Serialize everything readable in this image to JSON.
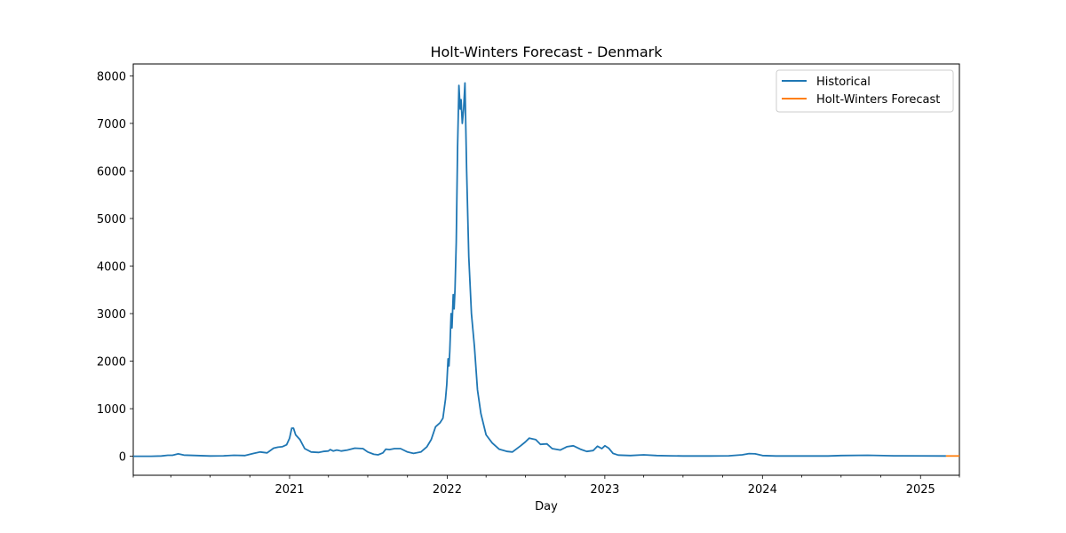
{
  "chart_data": {
    "type": "line",
    "title": "Holt-Winters Forecast - Denmark",
    "xlabel": "Day",
    "ylabel": "",
    "xlim": [
      "2020-01-05",
      "2025-04-01"
    ],
    "ylim": [
      -400,
      8250
    ],
    "grid": false,
    "legend_position": "top-right",
    "x_ticks": [
      {
        "date": "2021-01-01",
        "label": "2021"
      },
      {
        "date": "2022-01-01",
        "label": "2022"
      },
      {
        "date": "2023-01-01",
        "label": "2023"
      },
      {
        "date": "2024-01-01",
        "label": "2024"
      },
      {
        "date": "2025-01-01",
        "label": "2025"
      }
    ],
    "x_minor_ticks": [
      "2020-01-05",
      "2020-04-01",
      "2020-07-01",
      "2020-10-01",
      "2021-04-01",
      "2021-07-01",
      "2021-10-01",
      "2022-04-01",
      "2022-07-01",
      "2022-10-01",
      "2023-04-01",
      "2023-07-01",
      "2023-10-01",
      "2024-04-01",
      "2024-07-01",
      "2024-10-01",
      "2025-04-01"
    ],
    "y_ticks": [
      0,
      1000,
      2000,
      3000,
      4000,
      5000,
      6000,
      7000,
      8000
    ],
    "series": [
      {
        "name": "Historical",
        "color": "#1f77b4",
        "points": [
          [
            "2020-01-05",
            0
          ],
          [
            "2020-02-15",
            0
          ],
          [
            "2020-03-10",
            5
          ],
          [
            "2020-03-25",
            20
          ],
          [
            "2020-04-05",
            20
          ],
          [
            "2020-04-18",
            50
          ],
          [
            "2020-05-01",
            25
          ],
          [
            "2020-06-01",
            15
          ],
          [
            "2020-07-01",
            5
          ],
          [
            "2020-08-01",
            10
          ],
          [
            "2020-08-25",
            20
          ],
          [
            "2020-09-20",
            15
          ],
          [
            "2020-10-10",
            60
          ],
          [
            "2020-10-25",
            90
          ],
          [
            "2020-11-10",
            70
          ],
          [
            "2020-11-25",
            170
          ],
          [
            "2020-12-05",
            190
          ],
          [
            "2020-12-15",
            200
          ],
          [
            "2020-12-25",
            240
          ],
          [
            "2021-01-01",
            380
          ],
          [
            "2021-01-06",
            590
          ],
          [
            "2021-01-10",
            590
          ],
          [
            "2021-01-15",
            450
          ],
          [
            "2021-01-25",
            350
          ],
          [
            "2021-02-05",
            160
          ],
          [
            "2021-02-20",
            90
          ],
          [
            "2021-03-10",
            80
          ],
          [
            "2021-03-20",
            100
          ],
          [
            "2021-04-01",
            110
          ],
          [
            "2021-04-05",
            140
          ],
          [
            "2021-04-12",
            110
          ],
          [
            "2021-04-20",
            130
          ],
          [
            "2021-05-01",
            110
          ],
          [
            "2021-05-15",
            130
          ],
          [
            "2021-06-01",
            170
          ],
          [
            "2021-06-20",
            160
          ],
          [
            "2021-07-01",
            90
          ],
          [
            "2021-07-15",
            40
          ],
          [
            "2021-07-25",
            30
          ],
          [
            "2021-08-05",
            70
          ],
          [
            "2021-08-12",
            150
          ],
          [
            "2021-08-20",
            140
          ],
          [
            "2021-09-01",
            160
          ],
          [
            "2021-09-15",
            160
          ],
          [
            "2021-10-01",
            90
          ],
          [
            "2021-10-15",
            60
          ],
          [
            "2021-11-01",
            90
          ],
          [
            "2021-11-15",
            200
          ],
          [
            "2021-11-25",
            350
          ],
          [
            "2021-12-05",
            620
          ],
          [
            "2021-12-15",
            700
          ],
          [
            "2021-12-22",
            800
          ],
          [
            "2021-12-28",
            1200
          ],
          [
            "2021-12-31",
            1500
          ],
          [
            "2022-01-03",
            2050
          ],
          [
            "2022-01-05",
            1900
          ],
          [
            "2022-01-07",
            2200
          ],
          [
            "2022-01-10",
            3000
          ],
          [
            "2022-01-12",
            2700
          ],
          [
            "2022-01-15",
            3400
          ],
          [
            "2022-01-17",
            3100
          ],
          [
            "2022-01-19",
            3500
          ],
          [
            "2022-01-22",
            4500
          ],
          [
            "2022-01-25",
            6500
          ],
          [
            "2022-01-28",
            7800
          ],
          [
            "2022-01-31",
            7300
          ],
          [
            "2022-02-02",
            7500
          ],
          [
            "2022-02-05",
            7000
          ],
          [
            "2022-02-08",
            7300
          ],
          [
            "2022-02-11",
            7850
          ],
          [
            "2022-02-15",
            6000
          ],
          [
            "2022-02-20",
            4200
          ],
          [
            "2022-02-26",
            3000
          ],
          [
            "2022-03-05",
            2300
          ],
          [
            "2022-03-12",
            1400
          ],
          [
            "2022-03-20",
            900
          ],
          [
            "2022-04-01",
            450
          ],
          [
            "2022-04-15",
            280
          ],
          [
            "2022-05-01",
            150
          ],
          [
            "2022-05-20",
            100
          ],
          [
            "2022-06-01",
            90
          ],
          [
            "2022-06-20",
            220
          ],
          [
            "2022-07-01",
            300
          ],
          [
            "2022-07-10",
            380
          ],
          [
            "2022-07-25",
            350
          ],
          [
            "2022-08-05",
            250
          ],
          [
            "2022-08-20",
            260
          ],
          [
            "2022-09-01",
            160
          ],
          [
            "2022-09-20",
            130
          ],
          [
            "2022-10-05",
            200
          ],
          [
            "2022-10-20",
            220
          ],
          [
            "2022-11-05",
            150
          ],
          [
            "2022-11-20",
            100
          ],
          [
            "2022-12-05",
            120
          ],
          [
            "2022-12-15",
            210
          ],
          [
            "2022-12-25",
            160
          ],
          [
            "2023-01-01",
            220
          ],
          [
            "2023-01-10",
            170
          ],
          [
            "2023-01-20",
            60
          ],
          [
            "2023-02-01",
            25
          ],
          [
            "2023-03-01",
            15
          ],
          [
            "2023-04-01",
            30
          ],
          [
            "2023-05-01",
            15
          ],
          [
            "2023-06-01",
            10
          ],
          [
            "2023-07-01",
            5
          ],
          [
            "2023-09-01",
            5
          ],
          [
            "2023-10-15",
            10
          ],
          [
            "2023-11-15",
            30
          ],
          [
            "2023-12-01",
            55
          ],
          [
            "2023-12-15",
            50
          ],
          [
            "2024-01-01",
            15
          ],
          [
            "2024-02-01",
            5
          ],
          [
            "2024-06-01",
            5
          ],
          [
            "2024-07-01",
            15
          ],
          [
            "2024-09-01",
            20
          ],
          [
            "2024-11-01",
            10
          ],
          [
            "2025-03-01",
            5
          ]
        ]
      },
      {
        "name": "Holt-Winters Forecast",
        "color": "#ff7f0e",
        "points": [
          [
            "2025-03-01",
            5
          ],
          [
            "2025-04-01",
            5
          ]
        ]
      }
    ]
  }
}
